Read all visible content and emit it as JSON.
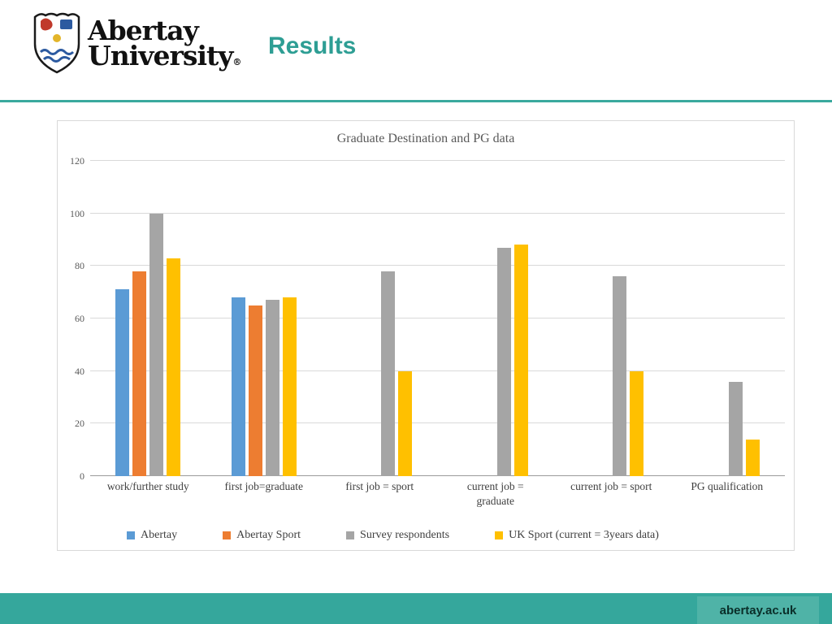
{
  "header": {
    "university_name_line1": "Abertay",
    "university_name_line2": "University",
    "registered_mark": "®",
    "page_title": "Results",
    "accent_color": "#2E9E94"
  },
  "chart_data": {
    "type": "bar",
    "title": "Graduate Destination and PG data",
    "categories": [
      "work/further study",
      "first job=graduate",
      "first job = sport",
      "current job =\ngraduate",
      "current job = sport",
      "PG qualification"
    ],
    "series": [
      {
        "name": "Abertay",
        "color": "#5B9BD5",
        "values": [
          71,
          68,
          null,
          null,
          null,
          null
        ]
      },
      {
        "name": "Abertay Sport",
        "color": "#ED7D31",
        "values": [
          78,
          65,
          null,
          null,
          null,
          null
        ]
      },
      {
        "name": "Survey respondents",
        "color": "#A5A5A5",
        "values": [
          100,
          67,
          78,
          87,
          76,
          36
        ]
      },
      {
        "name": "UK Sport (current = 3years data)",
        "color": "#FFC000",
        "values": [
          83,
          68,
          40,
          88,
          40,
          14
        ]
      }
    ],
    "ylim": [
      0,
      120
    ],
    "ytick_step": 20,
    "grid": true,
    "legend_position": "bottom"
  },
  "footer": {
    "url_label": "abertay.ac.uk"
  }
}
